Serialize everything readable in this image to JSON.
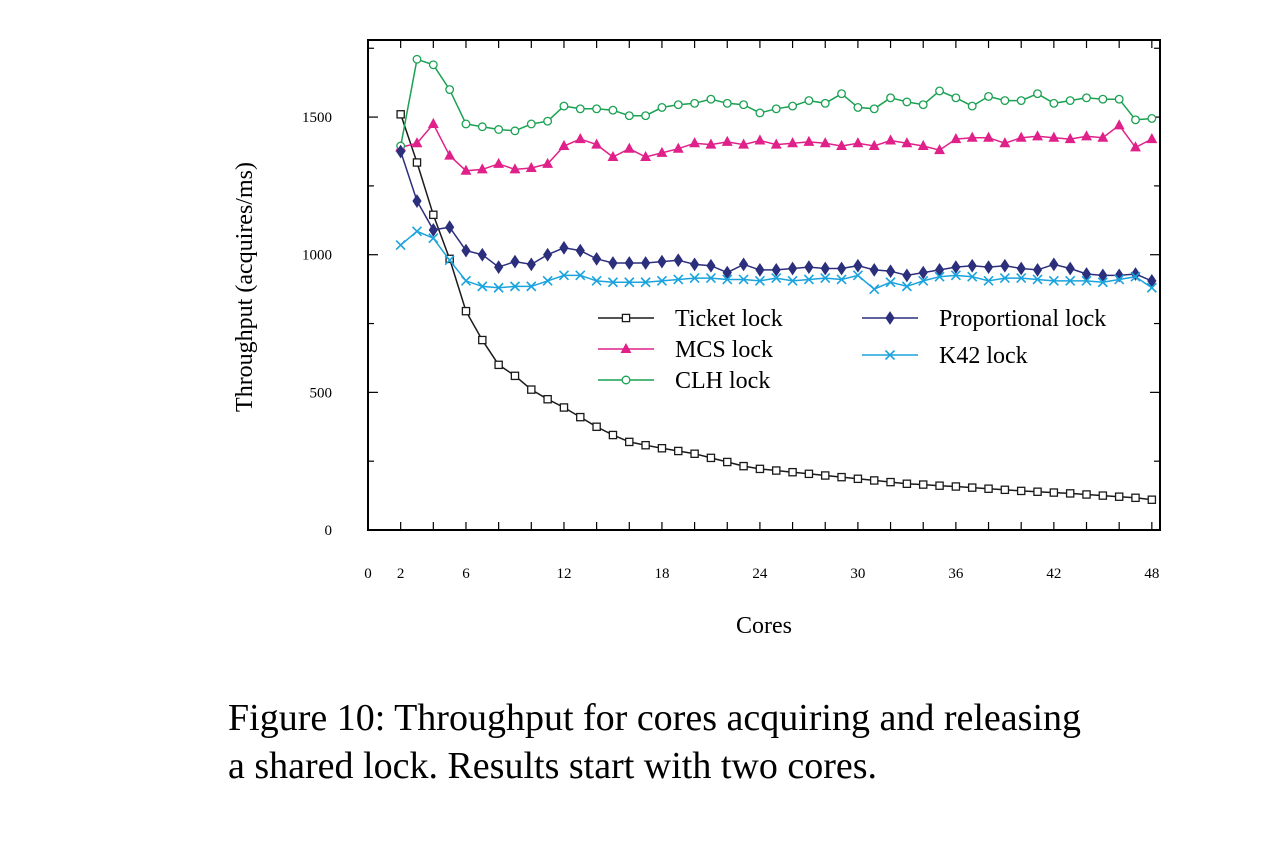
{
  "chart_data": {
    "type": "line",
    "xlabel": "Cores",
    "ylabel": "Throughput (acquires/ms)",
    "xlim": [
      0,
      48.5
    ],
    "ylim": [
      0,
      1780
    ],
    "x_ticks": [
      0,
      2,
      6,
      12,
      18,
      24,
      30,
      36,
      42,
      48
    ],
    "y_ticks": [
      0,
      500,
      1000,
      1500
    ],
    "y_minor_ticks": [
      250,
      750,
      1250,
      1750
    ],
    "grid": false,
    "legend_position": "center-right",
    "x": [
      2,
      3,
      4,
      5,
      6,
      7,
      8,
      9,
      10,
      11,
      12,
      13,
      14,
      15,
      16,
      17,
      18,
      19,
      20,
      21,
      22,
      23,
      24,
      25,
      26,
      27,
      28,
      29,
      30,
      31,
      32,
      33,
      34,
      35,
      36,
      37,
      38,
      39,
      40,
      41,
      42,
      43,
      44,
      45,
      46,
      47,
      48
    ],
    "series": [
      {
        "name": "Ticket lock",
        "color": "#1a1a1a",
        "marker": "square",
        "values": [
          1510,
          1335,
          1145,
          985,
          795,
          690,
          600,
          560,
          510,
          475,
          445,
          410,
          375,
          345,
          320,
          308,
          297,
          287,
          277,
          262,
          247,
          232,
          222,
          216,
          210,
          204,
          198,
          192,
          186,
          180,
          174,
          168,
          165,
          161,
          158,
          154,
          150,
          146,
          142,
          139,
          136,
          133,
          129,
          125,
          121,
          117,
          110
        ]
      },
      {
        "name": "MCS lock",
        "color": "#e0218a",
        "marker": "triangle",
        "values": [
          1390,
          1405,
          1475,
          1360,
          1305,
          1310,
          1330,
          1310,
          1315,
          1330,
          1395,
          1420,
          1400,
          1355,
          1385,
          1355,
          1370,
          1385,
          1405,
          1400,
          1410,
          1400,
          1415,
          1400,
          1405,
          1410,
          1405,
          1395,
          1405,
          1395,
          1415,
          1405,
          1395,
          1380,
          1420,
          1425,
          1425,
          1405,
          1425,
          1430,
          1425,
          1420,
          1430,
          1425,
          1470,
          1390,
          1420
        ]
      },
      {
        "name": "CLH lock",
        "color": "#1aa152",
        "marker": "circle",
        "values": [
          1395,
          1710,
          1690,
          1600,
          1475,
          1465,
          1455,
          1450,
          1475,
          1485,
          1540,
          1530,
          1530,
          1525,
          1505,
          1505,
          1535,
          1545,
          1550,
          1565,
          1550,
          1545,
          1515,
          1530,
          1540,
          1560,
          1550,
          1585,
          1535,
          1530,
          1570,
          1555,
          1545,
          1595,
          1570,
          1540,
          1575,
          1560,
          1560,
          1585,
          1550,
          1560,
          1570,
          1565,
          1565,
          1490,
          1495
        ]
      },
      {
        "name": "Proportional lock",
        "color": "#2b2f7c",
        "marker": "diamond",
        "values": [
          1375,
          1195,
          1090,
          1100,
          1015,
          1000,
          955,
          975,
          965,
          1000,
          1025,
          1015,
          985,
          970,
          970,
          970,
          975,
          980,
          965,
          960,
          935,
          965,
          945,
          945,
          950,
          955,
          950,
          950,
          960,
          945,
          940,
          925,
          935,
          945,
          955,
          960,
          955,
          960,
          950,
          945,
          965,
          950,
          930,
          925,
          925,
          930,
          905
        ]
      },
      {
        "name": "K42 lock",
        "color": "#1aa3dc",
        "marker": "x",
        "values": [
          1035,
          1085,
          1060,
          980,
          905,
          885,
          880,
          885,
          885,
          905,
          925,
          925,
          905,
          900,
          900,
          900,
          905,
          910,
          915,
          915,
          910,
          910,
          905,
          915,
          905,
          910,
          915,
          910,
          925,
          875,
          900,
          885,
          905,
          920,
          925,
          920,
          905,
          915,
          915,
          910,
          905,
          905,
          905,
          900,
          910,
          920,
          880
        ]
      }
    ]
  },
  "caption": {
    "line1": "Figure 10: Throughput for cores acquiring and releasing",
    "line2": "a shared lock. Results start with two cores."
  }
}
